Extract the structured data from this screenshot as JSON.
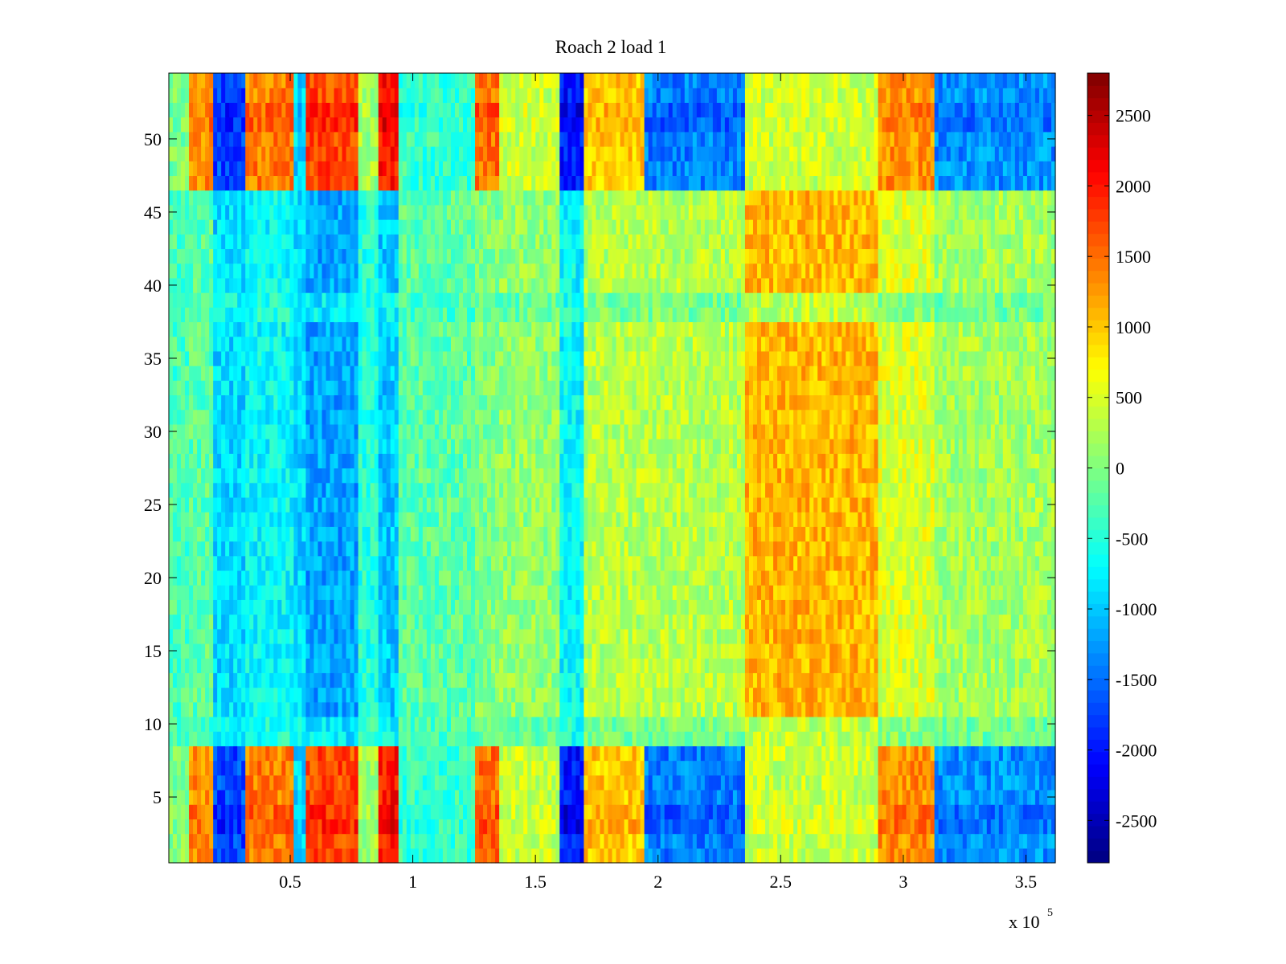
{
  "chart_data": {
    "type": "heatmap",
    "title": "Roach 2 load 1",
    "xlabel": "",
    "ylabel": "",
    "x_multiplier_label": "x 10",
    "x_multiplier_exponent": "5",
    "xlim": [
      0.005,
      3.62
    ],
    "ylim": [
      0.5,
      54.5
    ],
    "clim": [
      -2800,
      2800
    ],
    "colormap": "jet",
    "x_ticks": [
      0.5,
      1,
      1.5,
      2,
      2.5,
      3,
      3.5
    ],
    "x_tick_labels": [
      "0.5",
      "1",
      "1.5",
      "2",
      "2.5",
      "3",
      "3.5"
    ],
    "y_ticks": [
      5,
      10,
      15,
      20,
      25,
      30,
      35,
      40,
      45,
      50
    ],
    "y_tick_labels": [
      "5",
      "10",
      "15",
      "20",
      "25",
      "30",
      "35",
      "40",
      "45",
      "50"
    ],
    "colorbar_ticks": [
      -2500,
      -2000,
      -1500,
      -1000,
      -500,
      0,
      500,
      1000,
      1500,
      2000,
      2500
    ],
    "colorbar_tick_labels": [
      "-2500",
      "-2000",
      "-1500",
      "-1000",
      "-500",
      "0",
      "500",
      "1000",
      "1500",
      "2000",
      "2500"
    ],
    "n_rows": 54,
    "x_bands": [
      {
        "x": [
          0.005,
          0.08
        ],
        "edge": 0,
        "mid": -300
      },
      {
        "x": [
          0.08,
          0.18
        ],
        "edge": 1300,
        "mid": -200
      },
      {
        "x": [
          0.18,
          0.32
        ],
        "edge": -1700,
        "mid": -900
      },
      {
        "x": [
          0.32,
          0.52
        ],
        "edge": 1400,
        "mid": -700
      },
      {
        "x": [
          0.52,
          0.56
        ],
        "edge": -900,
        "mid": -900
      },
      {
        "x": [
          0.56,
          0.78
        ],
        "edge": 1700,
        "mid": -1200
      },
      {
        "x": [
          0.78,
          0.86
        ],
        "edge": 200,
        "mid": -500
      },
      {
        "x": [
          0.86,
          0.94
        ],
        "edge": 2000,
        "mid": -1000
      },
      {
        "x": [
          0.94,
          1.25
        ],
        "edge": -400,
        "mid": -200
      },
      {
        "x": [
          1.25,
          1.35
        ],
        "edge": 1500,
        "mid": 0
      },
      {
        "x": [
          1.35,
          1.6
        ],
        "edge": 400,
        "mid": 100
      },
      {
        "x": [
          1.6,
          1.7
        ],
        "edge": -2000,
        "mid": -700
      },
      {
        "x": [
          1.7,
          1.95
        ],
        "edge": 1000,
        "mid": 300
      },
      {
        "x": [
          1.95,
          2.35
        ],
        "edge": -1400,
        "mid": 300
      },
      {
        "x": [
          2.35,
          2.9
        ],
        "edge": 400,
        "mid": 1100
      },
      {
        "x": [
          2.9,
          3.12
        ],
        "edge": 1300,
        "mid": 500
      },
      {
        "x": [
          3.12,
          3.62
        ],
        "edge": -1300,
        "mid": 200
      }
    ]
  }
}
